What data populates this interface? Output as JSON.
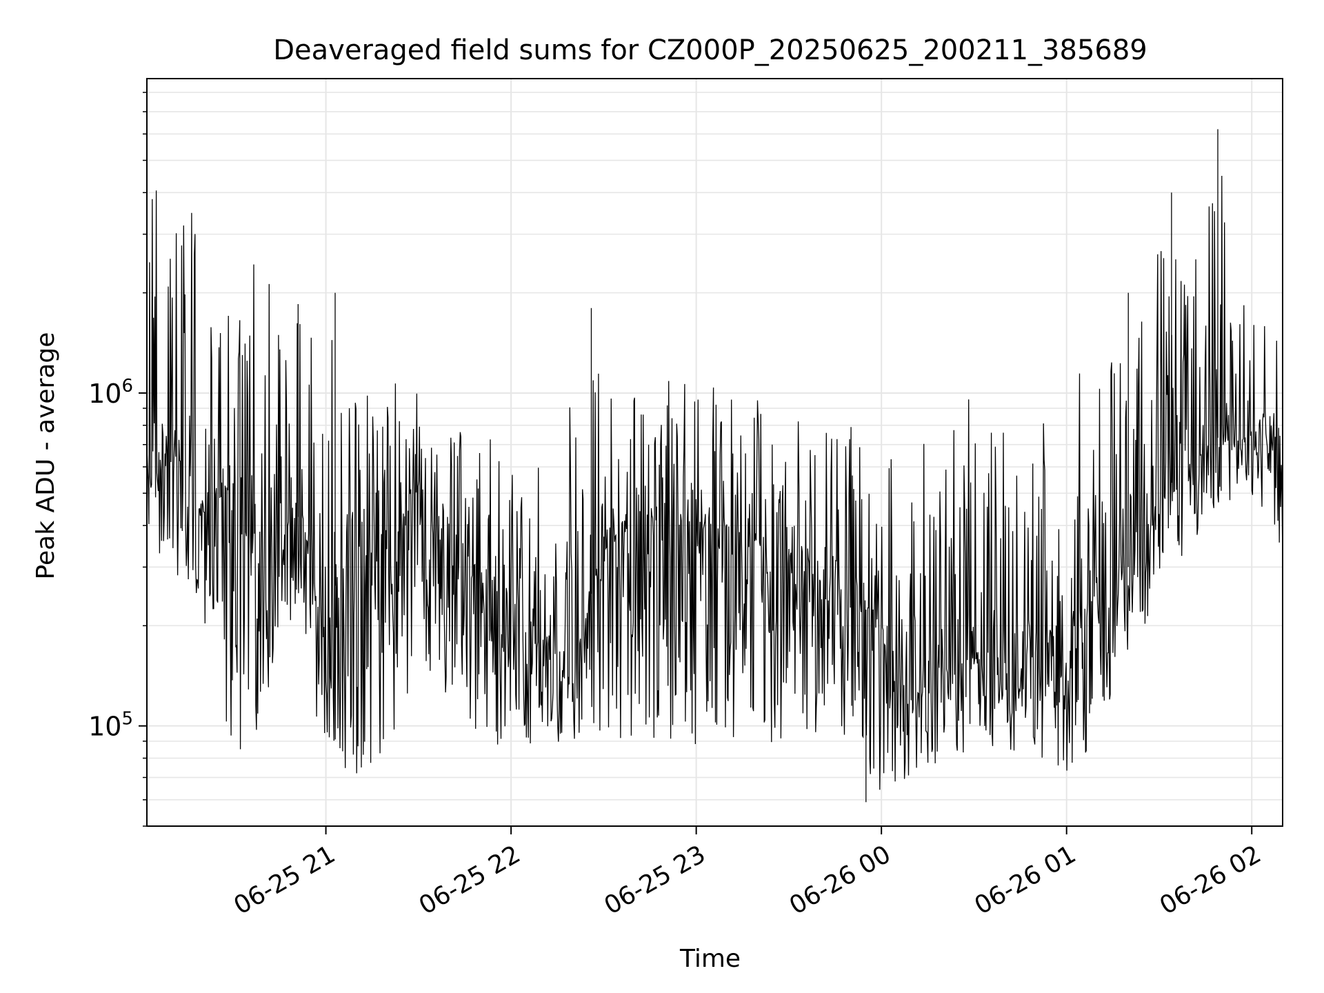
{
  "chart_data": {
    "type": "line",
    "title": "Deaveraged field sums for CZ000P_20250625_200211_385689",
    "xlabel": "Time",
    "ylabel": "Peak ADU - average",
    "y_scale": "log",
    "ylim": [
      50000,
      8800000
    ],
    "xlim": [
      "2025-06-25 20:02",
      "2025-06-26 02:10"
    ],
    "grid": true,
    "line_color": "#000000",
    "grid_color": "#e6e6e6",
    "x_ticks": [
      {
        "value": "2025-06-25 21:00",
        "label": "06-25 21"
      },
      {
        "value": "2025-06-25 22:00",
        "label": "06-25 22"
      },
      {
        "value": "2025-06-25 23:00",
        "label": "06-25 23"
      },
      {
        "value": "2025-06-26 00:00",
        "label": "06-26 00"
      },
      {
        "value": "2025-06-26 01:00",
        "label": "06-26 01"
      },
      {
        "value": "2025-06-26 02:00",
        "label": "06-26 02"
      }
    ],
    "y_ticks": [
      {
        "value": 100000,
        "base": "10",
        "exp": "5"
      },
      {
        "value": 1000000,
        "base": "10",
        "exp": "6"
      }
    ],
    "series": [
      {
        "x": [
          "2025-06-25 20:02",
          "2025-06-25 20:10",
          "2025-06-25 20:20",
          "2025-06-25 20:30",
          "2025-06-25 20:40",
          "2025-06-25 20:50",
          "2025-06-25 21:00",
          "2025-06-25 21:10",
          "2025-06-25 21:20",
          "2025-06-25 21:30",
          "2025-06-25 21:40",
          "2025-06-25 21:50",
          "2025-06-25 22:00",
          "2025-06-25 22:10",
          "2025-06-25 22:20",
          "2025-06-25 22:30",
          "2025-06-25 22:40",
          "2025-06-25 22:50",
          "2025-06-25 23:00",
          "2025-06-25 23:10",
          "2025-06-25 23:20",
          "2025-06-25 23:30",
          "2025-06-25 23:40",
          "2025-06-25 23:50",
          "2025-06-26 00:00",
          "2025-06-26 00:10",
          "2025-06-26 00:20",
          "2025-06-26 00:30",
          "2025-06-26 00:40",
          "2025-06-26 00:50",
          "2025-06-26 01:00",
          "2025-06-26 01:10",
          "2025-06-26 01:20",
          "2025-06-26 01:30",
          "2025-06-26 01:40",
          "2025-06-26 01:50",
          "2025-06-26 02:00",
          "2025-06-26 02:10"
        ],
        "y": [
          600000,
          650000,
          550000,
          500000,
          300000,
          450000,
          250000,
          300000,
          350000,
          500000,
          400000,
          300000,
          250000,
          200000,
          150000,
          350000,
          400000,
          450000,
          400000,
          400000,
          350000,
          300000,
          300000,
          250000,
          200000,
          120000,
          150000,
          160000,
          170000,
          180000,
          200000,
          250000,
          300000,
          500000,
          600000,
          750000,
          800000,
          700000
        ],
        "lo": [
          350000,
          300000,
          220000,
          80000,
          100000,
          220000,
          75000,
          70000,
          80000,
          150000,
          120000,
          90000,
          85000,
          85000,
          90000,
          90000,
          88000,
          90000,
          88000,
          88000,
          90000,
          75000,
          90000,
          85000,
          60000,
          70000,
          75000,
          80000,
          85000,
          80000,
          65000,
          90000,
          150000,
          250000,
          350000,
          450000,
          500000,
          300000
        ],
        "hi": [
          4800000,
          3200000,
          5500000,
          2200000,
          4200000,
          1800000,
          2000000,
          1050000,
          1100000,
          1000000,
          900000,
          800000,
          750000,
          700000,
          1800000,
          1050000,
          1100000,
          1100000,
          1050000,
          1050000,
          1000000,
          1000000,
          950000,
          950000,
          600000,
          950000,
          1000000,
          1100000,
          1000000,
          950000,
          1000000,
          1400000,
          1200000,
          3000000,
          2200000,
          5800000,
          2000000,
          2000000
        ],
        "spikes": [
          {
            "x": "2025-06-25 20:51",
            "y": 1850000
          },
          {
            "x": "2025-06-25 21:03",
            "y": 2000000
          },
          {
            "x": "2025-06-25 22:26",
            "y": 1800000
          },
          {
            "x": "2025-06-25 23:55",
            "y": 59000
          },
          {
            "x": "2025-06-26 01:20",
            "y": 2000000
          },
          {
            "x": "2025-06-26 01:34",
            "y": 4000000
          },
          {
            "x": "2025-06-26 01:49",
            "y": 6200000
          }
        ]
      }
    ]
  }
}
